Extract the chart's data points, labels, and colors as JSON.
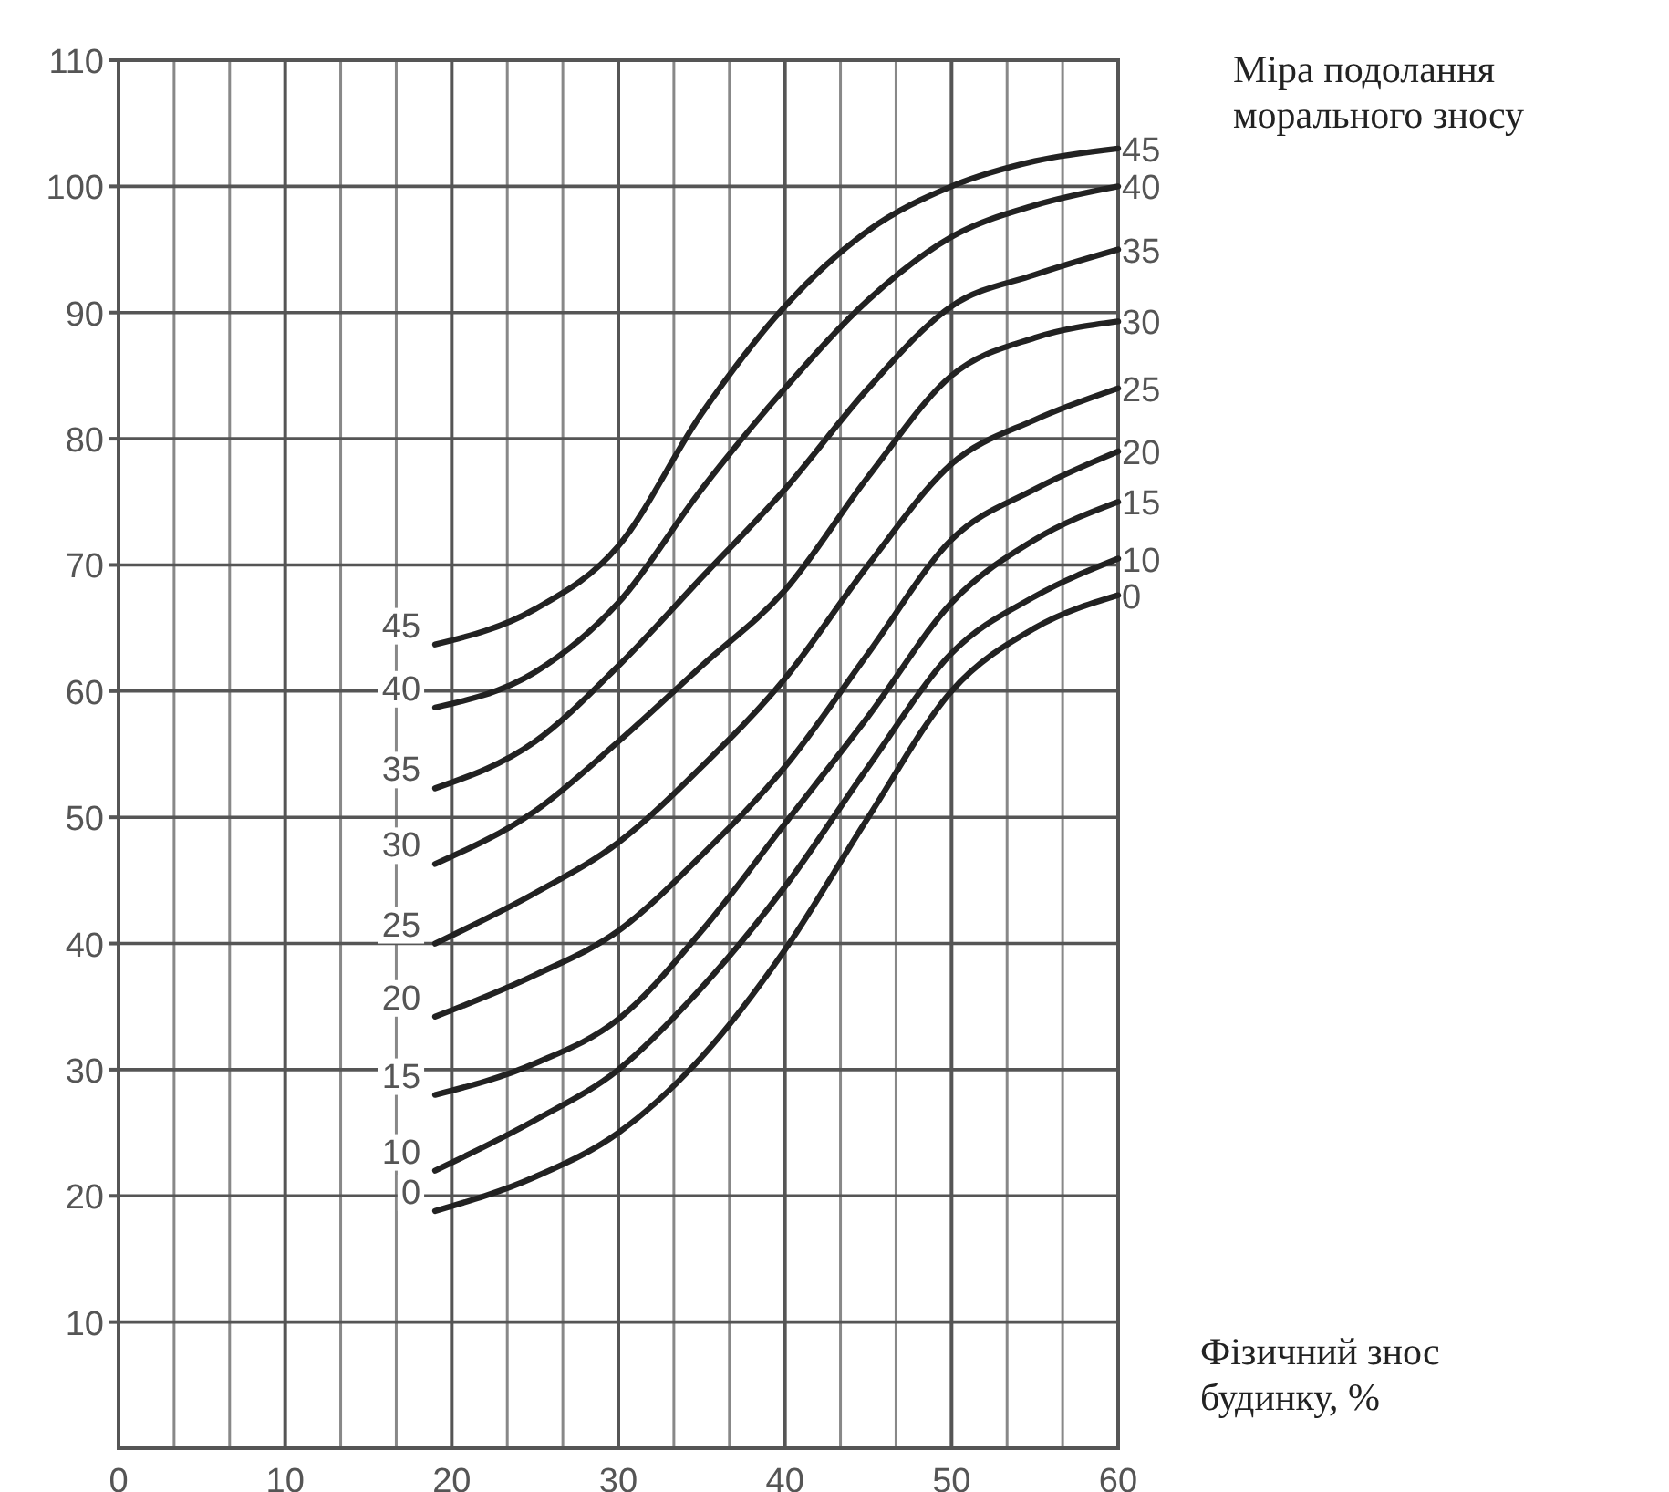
{
  "chart_data": {
    "type": "line",
    "xlabel": "Фізичний знос будинку, %",
    "legend_title": "Міра подолання морального зносу",
    "x": [
      19,
      25,
      30,
      35,
      40,
      45,
      50,
      55,
      60
    ],
    "series": [
      {
        "name": "45",
        "color": "#222222",
        "values": [
          63.7,
          66.5,
          71.5,
          82,
          90.5,
          96.5,
          100,
          102,
          103
        ]
      },
      {
        "name": "40",
        "color": "#222222",
        "values": [
          58.7,
          61.5,
          67,
          76,
          84,
          91,
          96,
          98.5,
          100
        ]
      },
      {
        "name": "35",
        "color": "#222222",
        "values": [
          52.3,
          56,
          62,
          69,
          76,
          84,
          90.5,
          93,
          95
        ]
      },
      {
        "name": "30",
        "color": "#222222",
        "values": [
          46.3,
          50.5,
          56,
          62,
          68,
          77,
          85,
          88,
          89.3
        ]
      },
      {
        "name": "25",
        "color": "#222222",
        "values": [
          40,
          44,
          48,
          54,
          61,
          70,
          78,
          81.5,
          84
        ]
      },
      {
        "name": "20",
        "color": "#222222",
        "values": [
          34.2,
          37.5,
          41,
          47,
          54,
          63,
          72,
          76,
          79
        ]
      },
      {
        "name": "15",
        "color": "#222222",
        "values": [
          28,
          30.5,
          34,
          41,
          49.5,
          58,
          67,
          72,
          75
        ]
      },
      {
        "name": "10",
        "color": "#222222",
        "values": [
          22,
          26,
          30,
          36.5,
          44.5,
          54,
          63,
          67.5,
          70.5
        ]
      },
      {
        "name": "0",
        "color": "#222222",
        "values": [
          18.8,
          21.5,
          25,
          31,
          39.5,
          50,
          60,
          65,
          67.6
        ]
      }
    ],
    "xlim": [
      0,
      60
    ],
    "xticks": [
      0,
      {
        "value": 3.333,
        "label": null
      },
      {
        "value": 6.667,
        "label": null
      },
      10,
      {
        "value": 13.333,
        "label": null
      },
      {
        "value": 16.667,
        "label": null
      },
      20,
      {
        "value": 23.333,
        "label": null
      },
      {
        "value": 26.667,
        "label": null
      },
      30,
      {
        "value": 33.333,
        "label": null
      },
      {
        "value": 36.667,
        "label": null
      },
      40,
      {
        "value": 43.333,
        "label": null
      },
      {
        "value": 46.667,
        "label": null
      },
      50,
      {
        "value": 53.333,
        "label": null
      },
      {
        "value": 56.667,
        "label": null
      },
      60
    ],
    "ylim": [
      0,
      110
    ],
    "yticks": [
      10,
      20,
      30,
      40,
      50,
      60,
      70,
      80,
      90,
      100,
      110
    ],
    "grid": true,
    "legend": false,
    "marker": "none",
    "line_style": "solid"
  }
}
